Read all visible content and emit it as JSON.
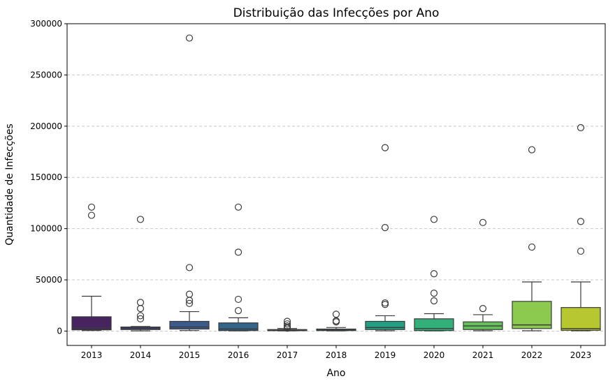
{
  "chart_data": {
    "type": "box",
    "title": "Distribuição das Infecções por Ano",
    "xlabel": "Ano",
    "ylabel": "Quantidade de Infecções",
    "ylim": [
      -14000,
      300000
    ],
    "yticks": [
      0,
      50000,
      100000,
      150000,
      200000,
      250000,
      300000
    ],
    "grid": "y-dashed",
    "categories": [
      "2013",
      "2014",
      "2015",
      "2016",
      "2017",
      "2018",
      "2019",
      "2020",
      "2021",
      "2022",
      "2023"
    ],
    "colors": [
      "#46245f",
      "#3f3f7f",
      "#3d5a8c",
      "#33658b",
      "#2d7889",
      "#21918c",
      "#22a082",
      "#33b079",
      "#63c05a",
      "#8cc94f",
      "#b7c72f"
    ],
    "boxes": [
      {
        "year": "2013",
        "whisker_low": 500,
        "q1": 1200,
        "median": 3000,
        "q3": 14000,
        "whisker_high": 34000,
        "outliers": [
          121000,
          113000
        ]
      },
      {
        "year": "2014",
        "whisker_low": 200,
        "q1": 1500,
        "median": 2800,
        "q3": 4000,
        "whisker_high": 4500,
        "outliers": [
          109000,
          28000,
          22000,
          15000,
          12000
        ]
      },
      {
        "year": "2015",
        "whisker_low": 500,
        "q1": 2000,
        "median": 4000,
        "q3": 9500,
        "whisker_high": 19000,
        "outliers": [
          286000,
          62000,
          36000,
          30000,
          27000
        ]
      },
      {
        "year": "2016",
        "whisker_low": 200,
        "q1": 500,
        "median": 2000,
        "q3": 8000,
        "whisker_high": 13000,
        "outliers": [
          121000,
          77000,
          31000,
          20000
        ]
      },
      {
        "year": "2017",
        "whisker_low": 200,
        "q1": 400,
        "median": 800,
        "q3": 1500,
        "whisker_high": 2500,
        "outliers": [
          9500,
          7000,
          5000,
          3500,
          2800
        ]
      },
      {
        "year": "2018",
        "whisker_low": 200,
        "q1": 500,
        "median": 1000,
        "q3": 2000,
        "whisker_high": 3500,
        "outliers": [
          16500,
          10000,
          9000
        ]
      },
      {
        "year": "2019",
        "whisker_low": 300,
        "q1": 1500,
        "median": 3500,
        "q3": 9500,
        "whisker_high": 15000,
        "outliers": [
          179000,
          101000,
          27500,
          26000
        ]
      },
      {
        "year": "2020",
        "whisker_low": 200,
        "q1": 500,
        "median": 2500,
        "q3": 12000,
        "whisker_high": 17000,
        "outliers": [
          109000,
          56000,
          37000,
          29500
        ]
      },
      {
        "year": "2021",
        "whisker_low": 300,
        "q1": 1500,
        "median": 5000,
        "q3": 9000,
        "whisker_high": 16000,
        "outliers": [
          106000,
          22000
        ]
      },
      {
        "year": "2022",
        "whisker_low": 300,
        "q1": 2500,
        "median": 6000,
        "q3": 29000,
        "whisker_high": 48000,
        "outliers": [
          177000,
          82000
        ]
      },
      {
        "year": "2023",
        "whisker_low": 300,
        "q1": 800,
        "median": 2500,
        "q3": 23000,
        "whisker_high": 48000,
        "outliers": [
          198500,
          107000,
          78000
        ]
      }
    ]
  }
}
